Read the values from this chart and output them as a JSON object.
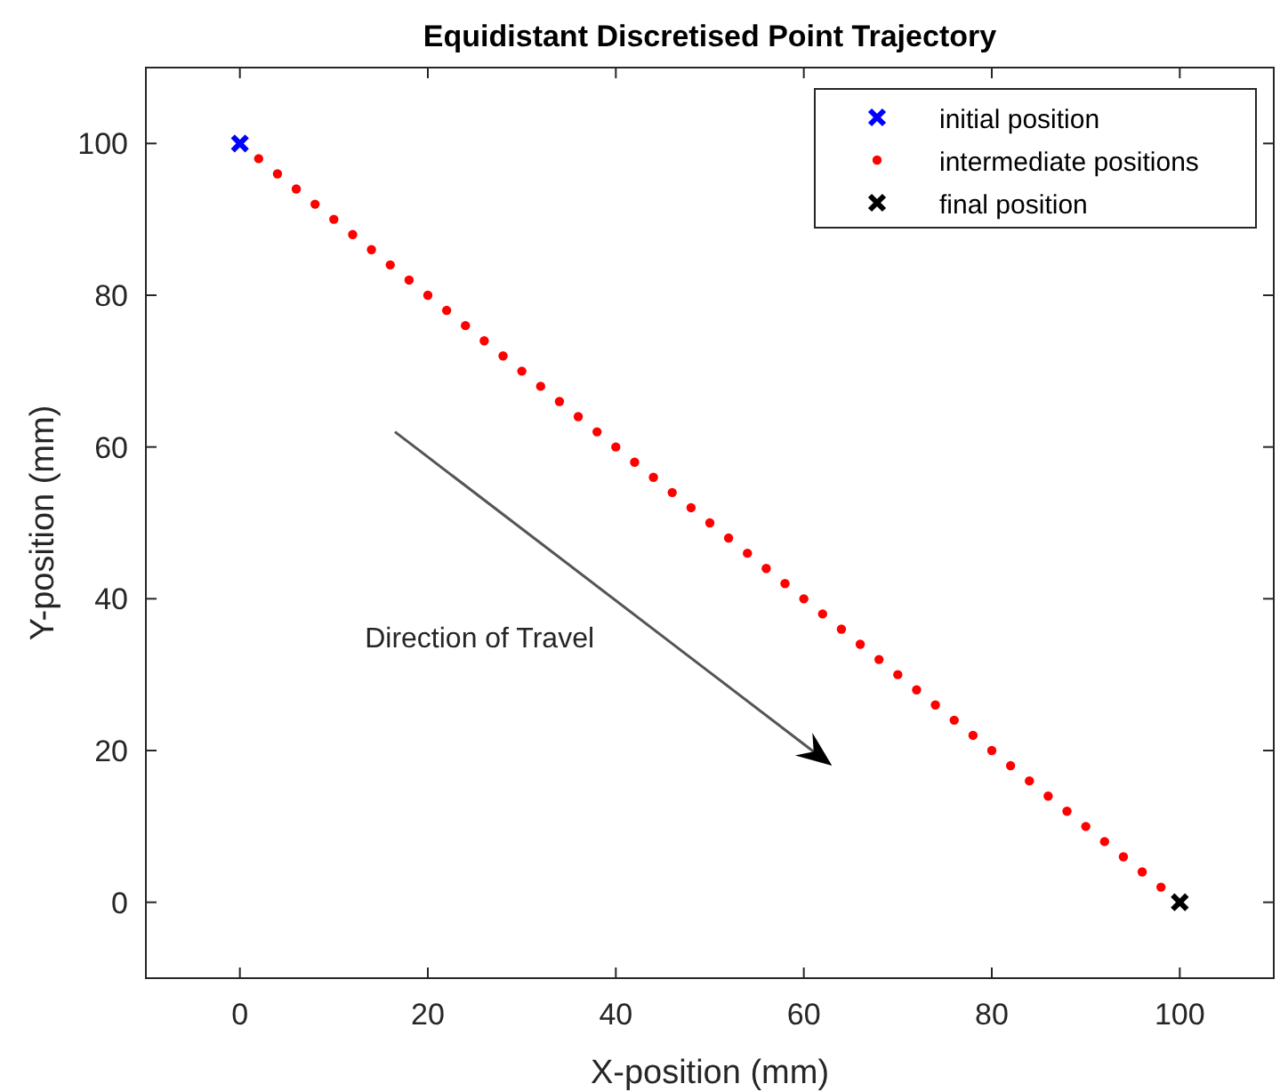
{
  "chart_data": {
    "type": "scatter",
    "title": "Equidistant Discretised Point Trajectory",
    "xlabel": "X-position (mm)",
    "ylabel": "Y-position (mm)",
    "xlim": [
      -10,
      110
    ],
    "ylim": [
      -10,
      110
    ],
    "xticks": [
      0,
      20,
      40,
      60,
      80,
      100
    ],
    "yticks": [
      0,
      20,
      40,
      60,
      80,
      100
    ],
    "grid": false,
    "legend": "top right",
    "annotations": [
      "Direction of Travel"
    ],
    "series": [
      {
        "name": "initial position",
        "color": "#0000ff",
        "marker": "cross",
        "x": [
          0
        ],
        "values": [
          100
        ]
      },
      {
        "name": "intermediate positions",
        "color": "#ff0000",
        "marker": "circle",
        "x": [
          2,
          4,
          6,
          8,
          10,
          12,
          14,
          16,
          18,
          20,
          22,
          24,
          26,
          28,
          30,
          32,
          34,
          36,
          38,
          40,
          42,
          44,
          46,
          48,
          50,
          52,
          54,
          56,
          58,
          60,
          62,
          64,
          66,
          68,
          70,
          72,
          74,
          76,
          78,
          80,
          82,
          84,
          86,
          88,
          90,
          92,
          94,
          96,
          98
        ],
        "values": [
          98,
          96,
          94,
          92,
          90,
          88,
          86,
          84,
          82,
          80,
          78,
          76,
          74,
          72,
          70,
          68,
          66,
          64,
          62,
          60,
          58,
          56,
          54,
          52,
          50,
          48,
          46,
          44,
          42,
          40,
          38,
          36,
          34,
          32,
          30,
          28,
          26,
          24,
          22,
          20,
          18,
          16,
          14,
          12,
          10,
          8,
          6,
          4,
          2
        ]
      },
      {
        "name": "final position",
        "color": "#000000",
        "marker": "cross",
        "x": [
          100
        ],
        "values": [
          0
        ]
      }
    ]
  }
}
